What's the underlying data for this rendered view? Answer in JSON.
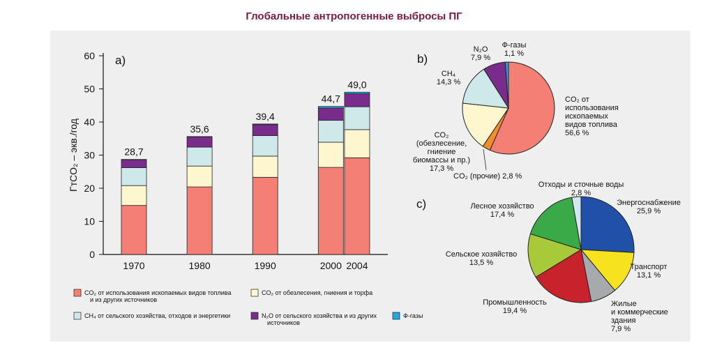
{
  "title": "Глобальные антропогенные выбросы ПГ",
  "colors": {
    "co2_fossil": "#f47f74",
    "co2_deforest": "#fdf6cf",
    "ch4": "#cfe9ea",
    "n2o": "#7a2c8c",
    "fgas": "#21a8df",
    "co2_other": "#f28d2c",
    "energy": "#2050a8",
    "transport": "#f6e31e",
    "buildings": "#a7a9ac",
    "industry": "#c8232c",
    "agriculture": "#a7c93a",
    "forestry": "#3aaa48",
    "waste": "#d3e7f2"
  },
  "chart_data": [
    {
      "type": "bar",
      "panel": "a)",
      "ylabel": "ГтCO₂ – экв./год",
      "ylim": [
        0,
        60
      ],
      "yticks": [
        0,
        10,
        20,
        30,
        40,
        50,
        60
      ],
      "categories": [
        "1970",
        "1980",
        "1990",
        "2000",
        "2004"
      ],
      "x": [
        1970,
        1980,
        1990,
        2000,
        2004
      ],
      "series": [
        {
          "key": "co2_fossil",
          "values": [
            14.8,
            20.4,
            23.3,
            26.3,
            29.2
          ]
        },
        {
          "key": "co2_deforest",
          "values": [
            6.0,
            6.3,
            6.4,
            7.6,
            8.5
          ]
        },
        {
          "key": "ch4",
          "values": [
            5.4,
            5.7,
            6.2,
            6.6,
            6.9
          ]
        },
        {
          "key": "n2o",
          "values": [
            2.4,
            3.1,
            3.3,
            3.7,
            3.9
          ]
        },
        {
          "key": "fgas",
          "values": [
            0.1,
            0.1,
            0.2,
            0.5,
            0.5
          ]
        }
      ],
      "totals": [
        "28,7",
        "35,6",
        "39,4",
        "44,7",
        "49,0"
      ],
      "legend": [
        {
          "key": "co2_fossil",
          "lines": [
            "CO₂ от использования ископаемых видов топлива",
            "и из других источников"
          ]
        },
        {
          "key": "co2_deforest",
          "lines": [
            "CO₂ от обезлесения, гниения и торфа"
          ]
        },
        {
          "key": "ch4",
          "lines": [
            "CH₄ от сельского хозяйства, отходов и энергетики"
          ]
        },
        {
          "key": "n2o",
          "lines": [
            "N₂O от сельского хозяйства и из других",
            "источников"
          ]
        },
        {
          "key": "fgas",
          "lines": [
            "Ф-газы"
          ]
        }
      ]
    },
    {
      "type": "pie",
      "panel": "b)",
      "slices": [
        {
          "key": "co2_fossil",
          "value": 56.6,
          "lines": [
            "CO₂ от",
            "использования",
            "ископаемых",
            "видов топлива",
            "56,6 %"
          ]
        },
        {
          "key": "co2_other",
          "value": 2.8,
          "lines": [
            "CO₂ (прочие) 2,8 %"
          ]
        },
        {
          "key": "co2_deforest",
          "value": 17.3,
          "lines": [
            "CO₂",
            "(обезлесение,",
            "гниение",
            "биомассы и пр.)",
            "17,3 %"
          ]
        },
        {
          "key": "ch4",
          "value": 14.3,
          "lines": [
            "CH₄",
            "14,3 %"
          ]
        },
        {
          "key": "n2o",
          "value": 7.9,
          "lines": [
            "N₂O",
            "7,9 %"
          ]
        },
        {
          "key": "fgas",
          "value": 1.1,
          "lines": [
            "Ф-газы",
            "1,1 %"
          ]
        }
      ]
    },
    {
      "type": "pie",
      "panel": "c)",
      "slices": [
        {
          "key": "energy",
          "value": 25.9,
          "lines": [
            "Энергоснабжение",
            "25,9 %"
          ]
        },
        {
          "key": "transport",
          "value": 13.1,
          "lines": [
            "Транспорт",
            "13,1 %"
          ]
        },
        {
          "key": "buildings",
          "value": 7.9,
          "lines": [
            "Жилые",
            "и коммерческие",
            "здания",
            "7,9 %"
          ]
        },
        {
          "key": "industry",
          "value": 19.4,
          "lines": [
            "Промышленность",
            "19,4 %"
          ]
        },
        {
          "key": "agriculture",
          "value": 13.5,
          "lines": [
            "Сельское хозяйство",
            "13,5 %"
          ]
        },
        {
          "key": "forestry",
          "value": 17.4,
          "lines": [
            "Лесное хозяйство",
            "17,4 %"
          ]
        },
        {
          "key": "waste",
          "value": 2.8,
          "lines": [
            "Отходы и сточные воды",
            "2,8 %"
          ]
        }
      ]
    }
  ]
}
